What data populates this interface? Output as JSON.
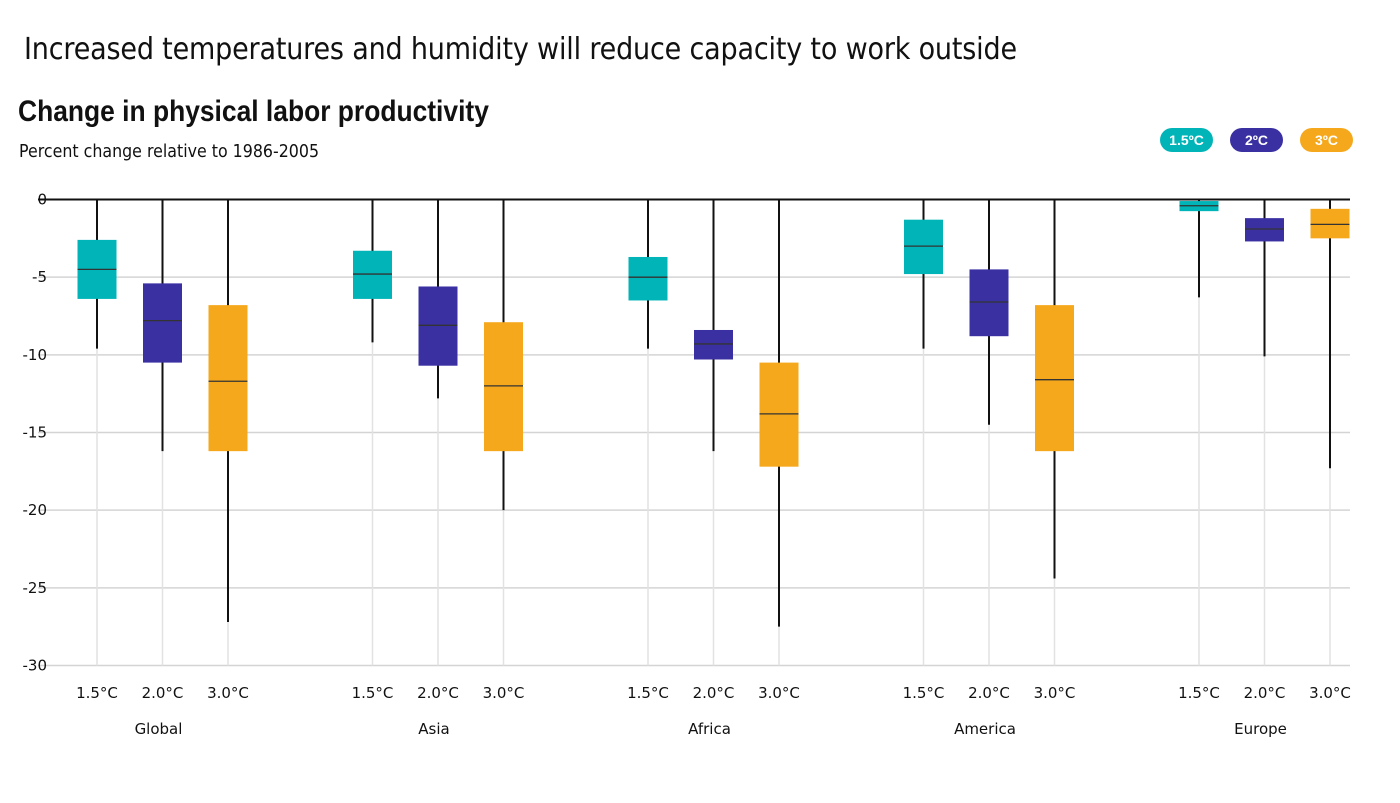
{
  "headline": "Increased temperatures and humidity will reduce capacity to work outside",
  "chart_data": {
    "type": "boxplot",
    "title": "Change in physical labor productivity",
    "subtitle": "Percent change relative to 1986-2005",
    "ylim": [
      -30,
      0
    ],
    "yticks": [
      0,
      -5,
      -10,
      -15,
      -20,
      -25,
      -30
    ],
    "grid": true,
    "legend_position": "top-right",
    "legend": [
      {
        "label": "1.5ºC",
        "color": "#00b4b8"
      },
      {
        "label": "2ºC",
        "color": "#3a30a2"
      },
      {
        "label": "3ºC",
        "color": "#f5a81b"
      }
    ],
    "scenario_labels": [
      "1.5°C",
      "2.0°C",
      "3.0°C"
    ],
    "groups": [
      {
        "name": "Global",
        "boxes": [
          {
            "min": -9.6,
            "q1": -6.4,
            "median": -4.5,
            "q3": -2.6,
            "max": 0
          },
          {
            "min": -16.2,
            "q1": -10.5,
            "median": -7.8,
            "q3": -5.4,
            "max": 0
          },
          {
            "min": -27.2,
            "q1": -16.2,
            "median": -11.7,
            "q3": -6.8,
            "max": 0
          }
        ]
      },
      {
        "name": "Asia",
        "boxes": [
          {
            "min": -9.2,
            "q1": -6.4,
            "median": -4.8,
            "q3": -3.3,
            "max": 0
          },
          {
            "min": -12.8,
            "q1": -10.7,
            "median": -8.1,
            "q3": -5.6,
            "max": 0
          },
          {
            "min": -20.0,
            "q1": -16.2,
            "median": -12.0,
            "q3": -7.9,
            "max": 0
          }
        ]
      },
      {
        "name": "Africa",
        "boxes": [
          {
            "min": -9.6,
            "q1": -6.5,
            "median": -5.0,
            "q3": -3.7,
            "max": 0
          },
          {
            "min": -16.2,
            "q1": -10.3,
            "median": -9.3,
            "q3": -8.4,
            "max": 0
          },
          {
            "min": -27.5,
            "q1": -17.2,
            "median": -13.8,
            "q3": -10.5,
            "max": 0
          }
        ]
      },
      {
        "name": "America",
        "boxes": [
          {
            "min": -9.6,
            "q1": -4.8,
            "median": -3.0,
            "q3": -1.3,
            "max": 0
          },
          {
            "min": -14.5,
            "q1": -8.8,
            "median": -6.6,
            "q3": -4.5,
            "max": 0
          },
          {
            "min": -24.4,
            "q1": -16.2,
            "median": -11.6,
            "q3": -6.8,
            "max": 0
          }
        ]
      },
      {
        "name": "Europe",
        "boxes": [
          {
            "min": -6.3,
            "q1": -0.75,
            "median": -0.4,
            "q3": -0.1,
            "max": 0
          },
          {
            "min": -10.1,
            "q1": -2.7,
            "median": -1.9,
            "q3": -1.2,
            "max": 0
          },
          {
            "min": -17.3,
            "q1": -2.5,
            "median": -1.6,
            "q3": -0.6,
            "max": 0
          }
        ]
      }
    ]
  }
}
